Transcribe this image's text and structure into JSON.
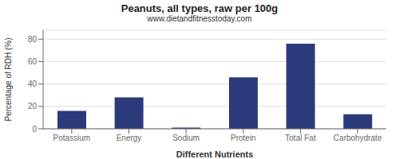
{
  "chart_data": {
    "type": "bar",
    "title": "Peanuts, all types, raw per 100g",
    "subtitle": "www.dietandfitnesstoday.com",
    "xlabel": "Different Nutrients",
    "ylabel": "Percentage of RDH (%)",
    "categories": [
      "Potassium",
      "Energy",
      "Sodium",
      "Protein",
      "Total Fat",
      "Carbohydrate"
    ],
    "values": [
      16,
      28,
      1,
      46,
      76,
      13
    ],
    "color": "#2b3a7a",
    "ylim": [
      0,
      88
    ],
    "yticks": [
      0,
      20,
      40,
      60,
      80
    ],
    "grid": true
  }
}
